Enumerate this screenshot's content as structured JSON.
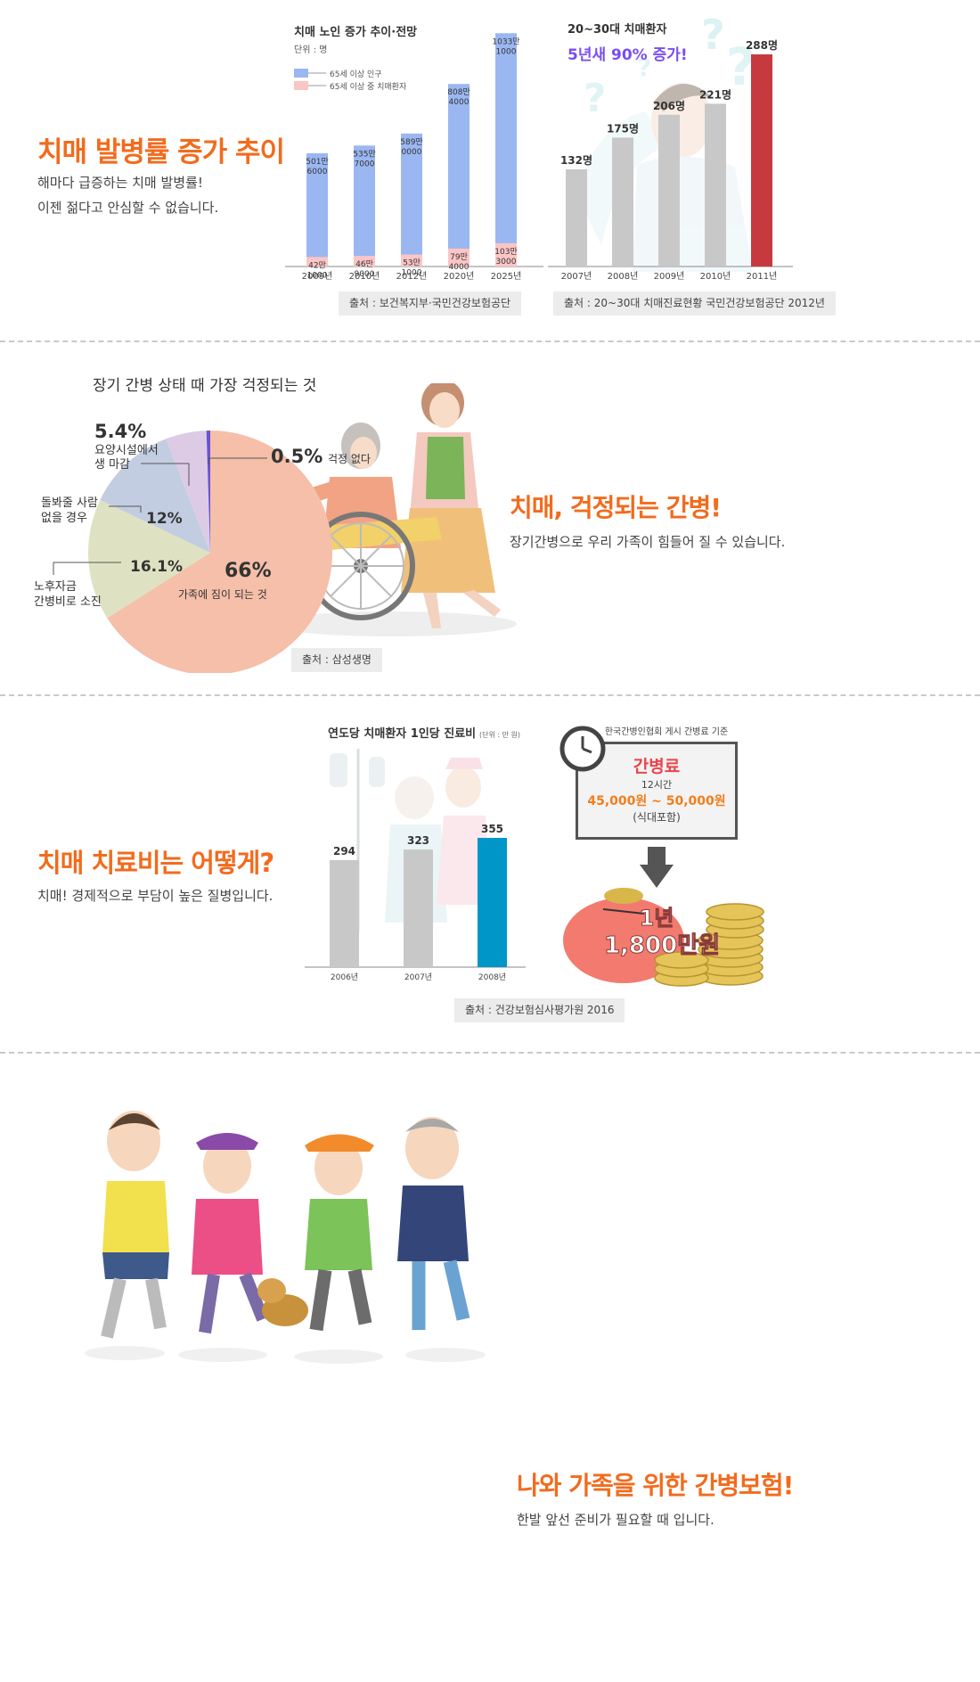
{
  "section1": {
    "headline": "치매 발병률 증가 추이",
    "desc1": "해마다 급증하는 치매 발병률!",
    "desc2": "이젠 젊다고 안심할 수 없습니다."
  },
  "section2": {
    "headline": "치매, 걱정되는 간병!",
    "desc": "장기간병으로 우리 가족이 힘들어 질 수 있습니다."
  },
  "section3": {
    "headline": "치매 치료비는 어떻게?",
    "desc": "치매! 경제적으로 부담이 높은 질병입니다.",
    "fee_box": {
      "caption": "한국간병인협회 게시 간병료 기준",
      "title": "간병료",
      "hours": "12시간",
      "range": "45,000원 ~ 50,000원",
      "note": "(식대포함)"
    },
    "annual": {
      "line1": "1년",
      "line2": "1,800만원"
    }
  },
  "section4": {
    "headline": "나와 가족을 위한 간병보험!",
    "desc": "한발 앞선 준비가 필요할 때 입니다."
  },
  "colors": {
    "accent": "#f26b1d",
    "population_bar": "#9bb7f2",
    "patient_bar": "#fcc5c5",
    "gray_bar": "#c8c8c8",
    "highlight_bar": "#c63a3f",
    "cost_highlight": "#0096c8",
    "purple_text": "#7a4ef2",
    "fee_red": "#e9454c",
    "fee_orange": "#f27d1d"
  },
  "chart_data": [
    {
      "id": "elderly_dementia",
      "type": "bar",
      "title": "치매 노인 증가 추이·전망",
      "unit": "단위 : 명",
      "categories": [
        "2009년",
        "2010년",
        "2012년",
        "2020년",
        "2025년"
      ],
      "series": [
        {
          "name": "65세 이상 인구",
          "values": [
            5016000,
            5357000,
            5890000,
            8084000,
            10331000
          ],
          "labels": [
            [
              "501만",
              "6000"
            ],
            [
              "535만",
              "7000"
            ],
            [
              "589만",
              "0000"
            ],
            [
              "808만",
              "4000"
            ],
            [
              "1033만",
              "1000"
            ]
          ]
        },
        {
          "name": "65세 이상 중 치매환자",
          "values": [
            421000,
            469000,
            531000,
            794000,
            1033000
          ],
          "labels": [
            [
              "42만",
              "1000"
            ],
            [
              "46만",
              "9000"
            ],
            [
              "53만",
              "1000"
            ],
            [
              "79만",
              "4000"
            ],
            [
              "103만",
              "3000"
            ]
          ]
        }
      ],
      "source": "출처 : 보건복지부·국민건강보험공단"
    },
    {
      "id": "young_patients",
      "type": "bar",
      "title": "20~30대 치매환자",
      "subtitle": "5년새 90% 증가!",
      "categories": [
        "2007년",
        "2008년",
        "2009년",
        "2010년",
        "2011년"
      ],
      "values": [
        132,
        175,
        206,
        221,
        288
      ],
      "labels": [
        "132명",
        "175명",
        "206명",
        "221명",
        "288명"
      ],
      "highlight_index": 4,
      "source": "출처 : 20~30대 치매진료현황 국민건강보험공단 2012년"
    },
    {
      "id": "care_worries",
      "type": "pie",
      "title": "장기 간병 상태 때 가장 걱정되는 것",
      "slices": [
        {
          "label": "가족에 짐이 되는 것",
          "value": 66,
          "value_label": "66%",
          "color": "#f5bfa9"
        },
        {
          "label": "노후자금 간병비로 소진",
          "value": 16.1,
          "value_label": "16.1%",
          "color": "#dfe2c2"
        },
        {
          "label": "돌봐줄 사람 없을 경우",
          "value": 12,
          "value_label": "12%",
          "color": "#c3cde1"
        },
        {
          "label": "요양시설에서 생 마감",
          "value": 5.4,
          "value_label": "5.4%",
          "color": "#ddcbe6"
        },
        {
          "label": "걱정 없다",
          "value": 0.5,
          "value_label": "0.5%",
          "color": "#6a52d6"
        }
      ],
      "callouts": {
        "family": "가족에 짐이 되는 것",
        "funds1": "노후자금",
        "funds2": "간병비로 소진",
        "nobody1": "돌봐줄 사람",
        "nobody2": "없을 경우",
        "facility1": "요양시설에서",
        "facility2": "생 마감",
        "none": "걱정 없다"
      },
      "source": "출처 : 삼성생명"
    },
    {
      "id": "cost_per_patient",
      "type": "bar",
      "title": "연도당 치매환자 1인당 진료비",
      "unit": "(단위 : 만 원)",
      "categories": [
        "2006년",
        "2007년",
        "2008년"
      ],
      "values": [
        294,
        323,
        355
      ],
      "highlight_index": 2,
      "source": "출처 : 건강보험심사평가원 2016"
    }
  ]
}
